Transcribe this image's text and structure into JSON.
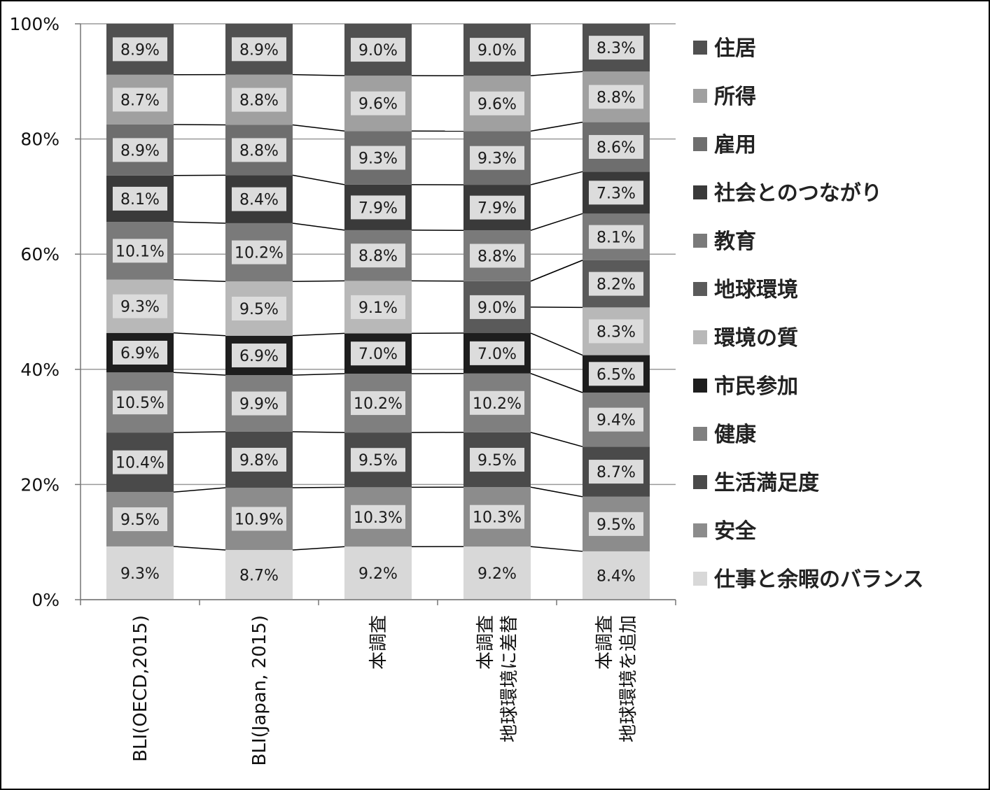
{
  "chart_data": {
    "type": "bar",
    "stacked": "percent",
    "categories": [
      [
        "BLI(OECD,2015)"
      ],
      [
        "BLI(Japan, 2015)"
      ],
      [
        "本調査"
      ],
      [
        "本調査",
        "地球環境に差替"
      ],
      [
        "本調査",
        "地球環境を追加"
      ]
    ],
    "ylim": [
      0,
      100
    ],
    "y_ticks": [
      "0%",
      "20%",
      "40%",
      "60%",
      "80%",
      "100%"
    ],
    "grid": true,
    "legend_position": "right",
    "series": [
      {
        "name": "仕事と余暇のバランス",
        "color": "#d8d8d8",
        "values": [
          9.3,
          8.7,
          9.2,
          9.2,
          8.4
        ],
        "labels": [
          "9.3%",
          "8.7%",
          "9.2%",
          "9.2%",
          "8.4%"
        ]
      },
      {
        "name": "安全",
        "color": "#8c8c8c",
        "values": [
          9.5,
          10.9,
          10.3,
          10.3,
          9.5
        ],
        "labels": [
          "9.5%",
          "10.9%",
          "10.3%",
          "10.3%",
          "9.5%"
        ]
      },
      {
        "name": "生活満足度",
        "color": "#4a4a4a",
        "values": [
          10.4,
          9.8,
          9.5,
          9.5,
          8.7
        ],
        "labels": [
          "10.4%",
          "9.8%",
          "9.5%",
          "9.5%",
          "8.7%"
        ]
      },
      {
        "name": "健康",
        "color": "#7f7f7f",
        "values": [
          10.5,
          9.9,
          10.2,
          10.2,
          9.4
        ],
        "labels": [
          "10.5%",
          "9.9%",
          "10.2%",
          "10.2%",
          "9.4%"
        ]
      },
      {
        "name": "市民参加",
        "color": "#1e1e1e",
        "values": [
          6.9,
          6.9,
          7.0,
          7.0,
          6.5
        ],
        "labels": [
          "6.9%",
          "6.9%",
          "7.0%",
          "7.0%",
          "6.5%"
        ]
      },
      {
        "name": "環境の質",
        "color": "#b8b8b8",
        "values": [
          9.3,
          9.5,
          9.1,
          null,
          8.3
        ],
        "labels": [
          "9.3%",
          "9.5%",
          "9.1%",
          null,
          "8.3%"
        ]
      },
      {
        "name": "地球環境",
        "color": "#5a5a5a",
        "values": [
          null,
          null,
          null,
          9.0,
          8.2
        ],
        "labels": [
          null,
          null,
          null,
          "9.0%",
          "8.2%"
        ]
      },
      {
        "name": "教育",
        "color": "#7a7a7a",
        "values": [
          10.1,
          10.2,
          8.8,
          8.8,
          8.1
        ],
        "labels": [
          "10.1%",
          "10.2%",
          "8.8%",
          "8.8%",
          "8.1%"
        ]
      },
      {
        "name": "社会とのつながり",
        "color": "#3a3a3a",
        "values": [
          8.1,
          8.4,
          7.9,
          7.9,
          7.3
        ],
        "labels": [
          "8.1%",
          "8.4%",
          "7.9%",
          "7.9%",
          "7.3%"
        ]
      },
      {
        "name": "雇用",
        "color": "#6e6e6e",
        "values": [
          8.9,
          8.8,
          9.3,
          9.3,
          8.6
        ],
        "labels": [
          "8.9%",
          "8.8%",
          "9.3%",
          "9.3%",
          "8.6%"
        ]
      },
      {
        "name": "所得",
        "color": "#a0a0a0",
        "values": [
          8.7,
          8.8,
          9.6,
          9.6,
          8.8
        ],
        "labels": [
          "8.7%",
          "8.8%",
          "9.6%",
          "9.6%",
          "8.8%"
        ]
      },
      {
        "name": "住居",
        "color": "#505050",
        "values": [
          8.9,
          8.9,
          9.0,
          9.0,
          8.3
        ],
        "labels": [
          "8.9%",
          "8.9%",
          "9.0%",
          "9.0%",
          "8.3%"
        ]
      }
    ]
  }
}
